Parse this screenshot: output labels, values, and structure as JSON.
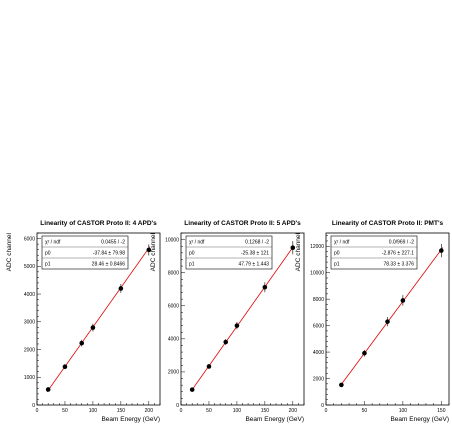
{
  "chart_data": [
    {
      "type": "scatter",
      "title": "Linearity of CASTOR Proto II: 4 APD's",
      "xlabel": "Beam Energy (GeV)",
      "ylabel": "ADC channel",
      "xlim": [
        0,
        220
      ],
      "ylim": [
        0,
        6200
      ],
      "xticks": [
        0,
        50,
        100,
        150,
        200
      ],
      "yticks": [
        0,
        1000,
        2000,
        3000,
        4000,
        5000,
        6000
      ],
      "x": [
        20,
        50,
        80,
        100,
        150,
        200
      ],
      "y": [
        560,
        1380,
        2230,
        2790,
        4200,
        5590
      ],
      "yerr": [
        40,
        90,
        120,
        140,
        160,
        200
      ],
      "fit": {
        "p0": -37.84,
        "p1": 28.46
      },
      "stats": [
        {
          "label": "χ² / ndf",
          "value": "0.0455 / -2"
        },
        {
          "label": "p0",
          "value": "-37.84 ± 79.98"
        },
        {
          "label": "p1",
          "value": "28.46 ± 0.8466"
        }
      ]
    },
    {
      "type": "scatter",
      "title": "Linearity of CASTOR Proto II: 5 APD's",
      "xlabel": "Beam Energy (GeV)",
      "ylabel": "ADC channel",
      "xlim": [
        0,
        220
      ],
      "ylim": [
        0,
        10400
      ],
      "xticks": [
        0,
        50,
        100,
        150,
        200
      ],
      "yticks": [
        0,
        2000,
        4000,
        6000,
        8000,
        10000
      ],
      "x": [
        20,
        50,
        80,
        100,
        150,
        200
      ],
      "y": [
        930,
        2330,
        3810,
        4800,
        7120,
        9510
      ],
      "yerr": [
        60,
        120,
        180,
        220,
        300,
        400
      ],
      "fit": {
        "p0": -25.38,
        "p1": 47.79
      },
      "stats": [
        {
          "label": "χ² / ndf",
          "value": "0.1268 / -2"
        },
        {
          "label": "p0",
          "value": "-25.38 ± 121"
        },
        {
          "label": "p1",
          "value": "47.79 ± 1.443"
        }
      ]
    },
    {
      "type": "scatter",
      "title": "Linearity of CASTOR Proto II: PMT's",
      "xlabel": "Beam Energy (GeV)",
      "ylabel": "ADC channel",
      "xlim": [
        0,
        160
      ],
      "ylim": [
        0,
        13000
      ],
      "xticks": [
        0,
        50,
        100,
        150
      ],
      "yticks": [
        0,
        2000,
        4000,
        6000,
        8000,
        10000,
        12000
      ],
      "x": [
        20,
        50,
        80,
        100,
        150
      ],
      "y": [
        1520,
        3920,
        6300,
        7900,
        11670
      ],
      "yerr": [
        100,
        250,
        350,
        400,
        500
      ],
      "fit": {
        "p0": -2.876,
        "p1": 78.33
      },
      "stats": [
        {
          "label": "χ² / ndf",
          "value": "0.0/969 / -2"
        },
        {
          "label": "p0",
          "value": "-2.876 ± 227.1"
        },
        {
          "label": "p1",
          "value": "78.33 ± 3.376"
        }
      ]
    }
  ]
}
